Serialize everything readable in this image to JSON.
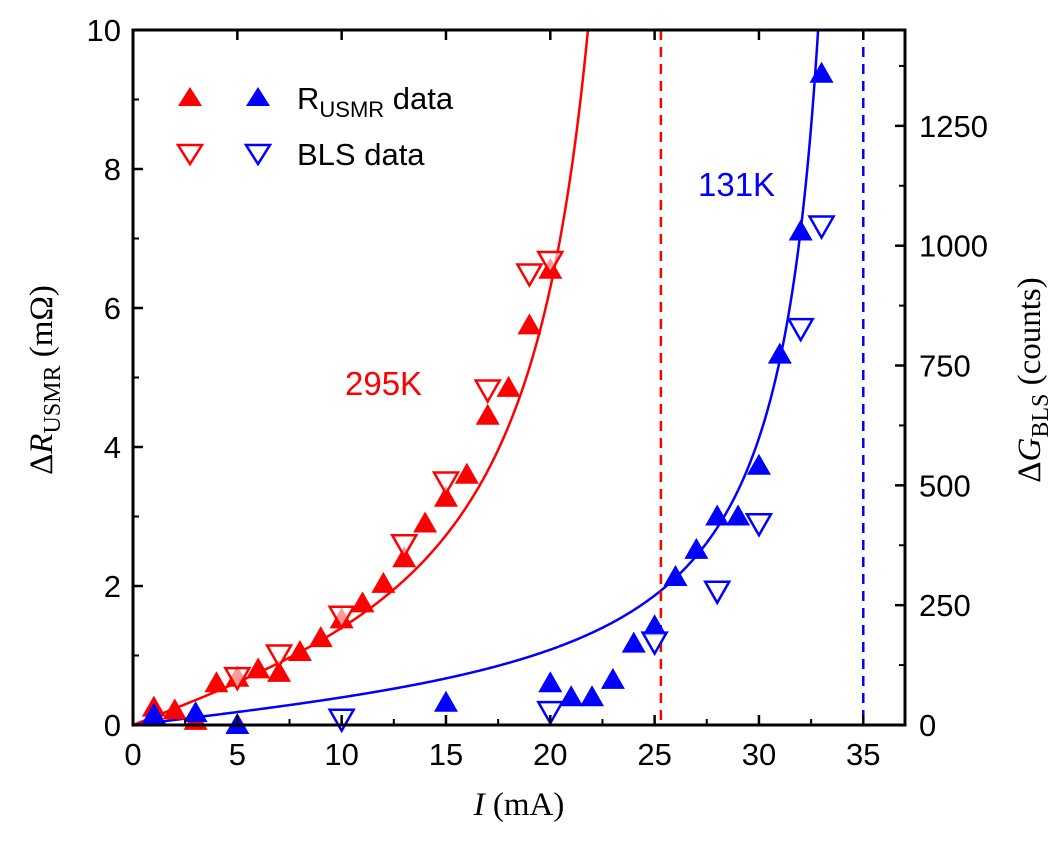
{
  "chart_data": {
    "type": "scatter",
    "title": "",
    "x_axis": {
      "label_italic": "I",
      "label_rest": " (mA)",
      "range": [
        0,
        37
      ],
      "ticks": [
        0,
        5,
        10,
        15,
        20,
        25,
        30,
        35
      ]
    },
    "y_left": {
      "label_prefix": "Δ",
      "label_italic": "R",
      "label_sub": "USMR",
      "label_rest": " (mΩ)",
      "range": [
        0,
        10
      ],
      "ticks": [
        0,
        2,
        4,
        6,
        8,
        10
      ]
    },
    "y_right": {
      "label_prefix": "Δ",
      "label_italic": "G",
      "label_sub": "BLS",
      "label_rest": " (counts)",
      "range": [
        0,
        1450
      ],
      "ticks": [
        0,
        250,
        500,
        750,
        1000,
        1250
      ]
    },
    "legend": {
      "position": "top-left",
      "entries": [
        {
          "main": "R",
          "sub": "USMR",
          "rest": " data",
          "marker": "up-filled"
        },
        {
          "main": "BLS data",
          "sub": "",
          "rest": "",
          "marker": "down-open"
        }
      ]
    },
    "series": [
      {
        "name": "R_USMR data",
        "temperature": "295K",
        "color": "#ff0000",
        "axis": "left",
        "marker": "up-filled",
        "points": [
          [
            1,
            0.25
          ],
          [
            2,
            0.21
          ],
          [
            3,
            0.06
          ],
          [
            4,
            0.6
          ],
          [
            5,
            0.68
          ],
          [
            6,
            0.8
          ],
          [
            7,
            0.75
          ],
          [
            8,
            1.05
          ],
          [
            9,
            1.25
          ],
          [
            10,
            1.52
          ],
          [
            11,
            1.75
          ],
          [
            12,
            2.03
          ],
          [
            13,
            2.4
          ],
          [
            14,
            2.9
          ],
          [
            15,
            3.27
          ],
          [
            16,
            3.6
          ],
          [
            17,
            4.45
          ],
          [
            18,
            4.85
          ],
          [
            19,
            5.75
          ],
          [
            20,
            6.55
          ]
        ]
      },
      {
        "name": "BLS data",
        "temperature": "295K",
        "color": "#ff0000",
        "axis": "right",
        "marker": "down-open",
        "points": [
          [
            5,
            100
          ],
          [
            7,
            147
          ],
          [
            10,
            228
          ],
          [
            13,
            377
          ],
          [
            15,
            508
          ],
          [
            17,
            700
          ],
          [
            19,
            942
          ],
          [
            20,
            968
          ]
        ]
      },
      {
        "name": "R_USMR data",
        "temperature": "131K",
        "color": "#0000ff",
        "axis": "left",
        "marker": "up-filled",
        "points": [
          [
            1,
            0.15
          ],
          [
            3,
            0.17
          ],
          [
            5,
            0.0
          ],
          [
            15,
            0.32
          ],
          [
            20,
            0.6
          ],
          [
            21,
            0.4
          ],
          [
            22,
            0.4
          ],
          [
            23,
            0.65
          ],
          [
            24,
            1.17
          ],
          [
            25,
            1.42
          ],
          [
            26,
            2.13
          ],
          [
            27,
            2.52
          ],
          [
            28,
            3.0
          ],
          [
            29,
            3.0
          ],
          [
            30,
            3.73
          ],
          [
            31,
            5.33
          ],
          [
            32,
            7.1
          ],
          [
            33,
            9.37
          ]
        ]
      },
      {
        "name": "BLS data",
        "temperature": "131K",
        "color": "#0000ff",
        "axis": "right",
        "marker": "down-open",
        "points": [
          [
            10,
            13
          ],
          [
            20,
            29
          ],
          [
            25,
            174
          ],
          [
            28,
            280
          ],
          [
            30,
            421
          ],
          [
            32,
            828
          ],
          [
            33,
            1042
          ]
        ]
      }
    ],
    "fits": [
      {
        "color": "#ff0000",
        "axis": "left",
        "critical_current": 25.3
      },
      {
        "color": "#0000ff",
        "axis": "left",
        "critical_current": 35.0
      }
    ],
    "vertical_lines": [
      {
        "x": 25.3,
        "color": "#ff0000",
        "style": "dashed"
      },
      {
        "x": 35.0,
        "color": "#0000ff",
        "style": "dashed"
      }
    ],
    "annotations": [
      {
        "text": "295K",
        "color": "#ff0000"
      },
      {
        "text": "131K",
        "color": "#0000ff"
      }
    ]
  }
}
